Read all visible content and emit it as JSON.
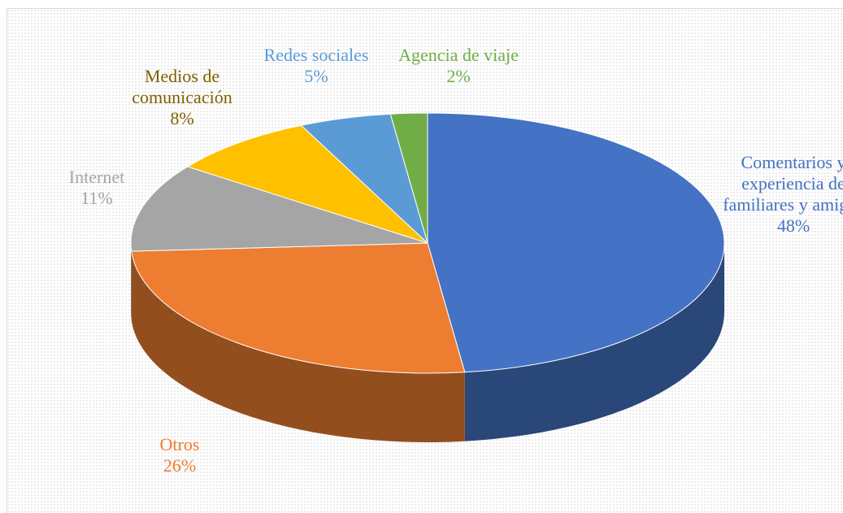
{
  "chart_data": {
    "type": "pie",
    "categories": [
      "Comentarios y experiencia de familiares y amigos",
      "Otros",
      "Internet",
      "Medios de comunicación",
      "Redes sociales",
      "Agencia de viaje"
    ],
    "values": [
      48,
      26,
      11,
      8,
      5,
      2
    ],
    "value_labels": [
      "48%",
      "26%",
      "11%",
      "8%",
      "5%",
      "2%"
    ],
    "colors": [
      "#4472c4",
      "#ed7d31",
      "#a5a5a5",
      "#ffc000",
      "#5b9bd5",
      "#70ad47"
    ],
    "label_colors": [
      "#4472c4",
      "#ed7d31",
      "#a5a5a5",
      "#7f6000",
      "#5b9bd5",
      "#70ad47"
    ]
  }
}
